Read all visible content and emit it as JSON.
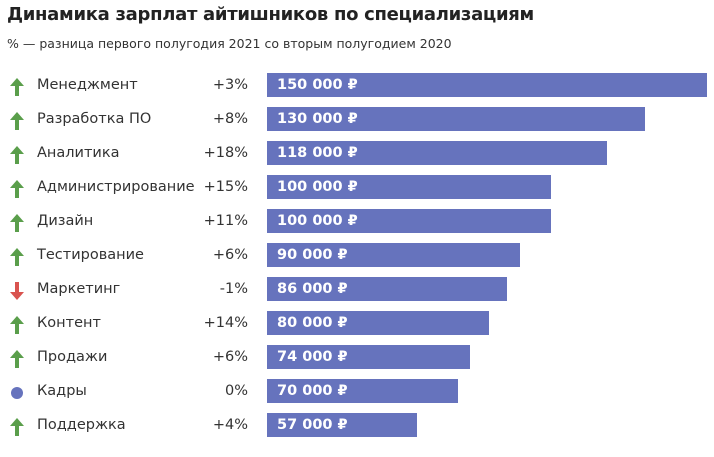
{
  "chart_data": {
    "type": "bar",
    "orientation": "horizontal",
    "title": "Динамика зарплат айтишников по специализациям",
    "subtitle": "% — разница первого полугодия 2021 со вторым полугодием 2020",
    "categories": [
      "Менеджмент",
      "Разработка ПО",
      "Аналитика",
      "Администрирование",
      "Дизайн",
      "Тестирование",
      "Маркетинг",
      "Контент",
      "Продажи",
      "Кадры",
      "Поддержка"
    ],
    "values": [
      150000,
      130000,
      118000,
      100000,
      100000,
      90000,
      86000,
      80000,
      74000,
      70000,
      57000
    ],
    "value_labels": [
      "150 000 ₽",
      "130 000 ₽",
      "118 000 ₽",
      "100 000 ₽",
      "100 000 ₽",
      "90 000 ₽",
      "86 000 ₽",
      "80 000 ₽",
      "74 000 ₽",
      "70 000 ₽",
      "57 000 ₽"
    ],
    "changes": [
      "+3%",
      "+8%",
      "+18%",
      "+15%",
      "+11%",
      "+6%",
      "-1%",
      "+14%",
      "+6%",
      "0%",
      "+4%"
    ],
    "trend_icons": [
      "arrow-up",
      "arrow-up",
      "arrow-up",
      "arrow-up",
      "arrow-up",
      "arrow-up",
      "arrow-down",
      "arrow-up",
      "arrow-up",
      "dot",
      "arrow-up"
    ],
    "grid": false,
    "colors": {
      "bar": "#6673bd",
      "up": "#5a9e4b",
      "down": "#d9534f",
      "neutral": "#6673bd"
    }
  }
}
